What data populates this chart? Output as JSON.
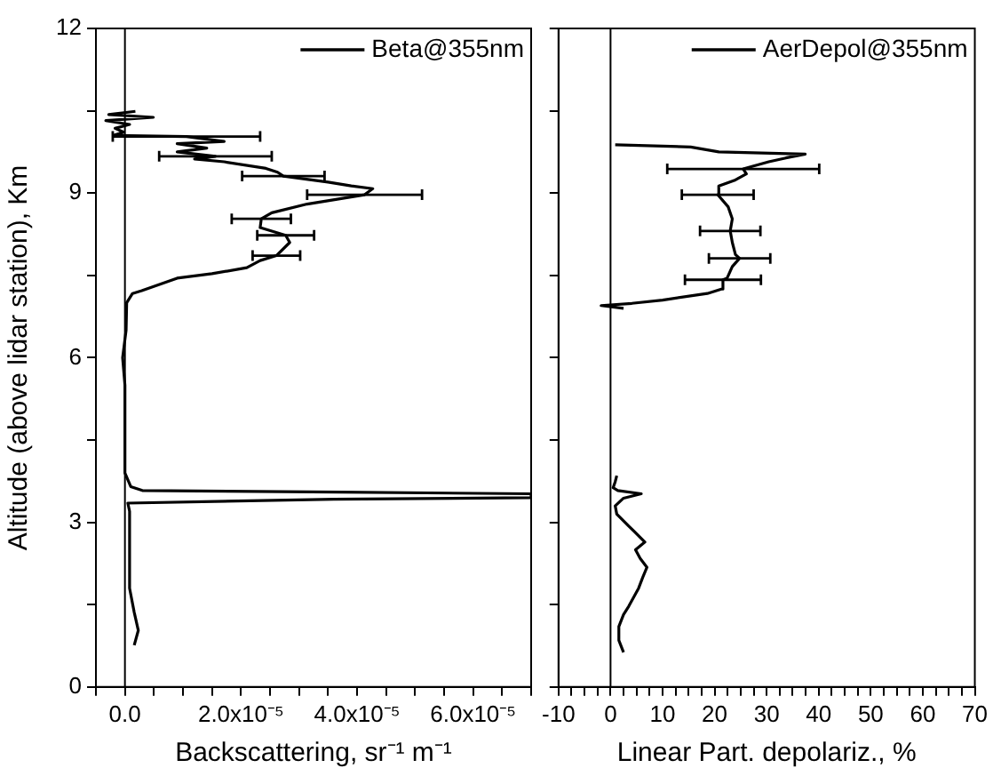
{
  "chart_data": [
    {
      "type": "line",
      "xlabel": "Backscattering, sr⁻¹ m⁻¹",
      "ylabel": "Altitude (above lidar station), Km",
      "legend": "top right",
      "xlim": [
        -5e-06,
        7e-05
      ],
      "ylim": [
        0,
        12
      ],
      "xticks": [
        {
          "value": -5e-06,
          "label": null
        },
        {
          "value": 0,
          "label": "0.0"
        },
        {
          "value": 5e-06,
          "label": null
        },
        {
          "value": 1e-05,
          "label": null
        },
        {
          "value": 1.5e-05,
          "label": null
        },
        {
          "value": 2e-05,
          "label": "2.0x10⁻⁵"
        },
        {
          "value": 2.5e-05,
          "label": null
        },
        {
          "value": 3e-05,
          "label": null
        },
        {
          "value": 3.5e-05,
          "label": null
        },
        {
          "value": 4e-05,
          "label": "4.0x10⁻⁵"
        },
        {
          "value": 4.5e-05,
          "label": null
        },
        {
          "value": 5e-05,
          "label": null
        },
        {
          "value": 5.5e-05,
          "label": null
        },
        {
          "value": 6e-05,
          "label": "6.0x10⁻⁵"
        },
        {
          "value": 6.5e-05,
          "label": null
        },
        {
          "value": 7e-05,
          "label": null
        }
      ],
      "yticks": [
        0,
        {
          "value": 1.5,
          "label": null
        },
        3,
        {
          "value": 4.5,
          "label": null
        },
        6,
        {
          "value": 7.5,
          "label": null
        },
        9,
        {
          "value": 10.5,
          "label": null
        },
        12
      ],
      "ref_lines": [
        {
          "axis": "x",
          "value": 0,
          "color": "#000000"
        }
      ],
      "series": [
        {
          "name": "Beta@355nm",
          "color": "#000000",
          "x": [
            1.6e-06,
            2.3e-06,
            1.6e-06,
            8e-07,
            8e-07,
            5e-07,
            3.6e-05,
            7e-05,
            7e-05,
            3.7e-05,
            3e-06,
            1e-06,
            0.0,
            0.0,
            -4e-07,
            2e-07,
            3e-07,
            1.3e-06,
            2.9e-06,
            9e-06,
            1.5e-05,
            2.1e-05,
            2.33e-05,
            2.61e-05,
            2.84e-05,
            2.77e-05,
            2.33e-05,
            2.35e-05,
            2.53e-05,
            3.14e-05,
            4.13e-05,
            4.27e-05,
            3.9e-05,
            3.5e-05,
            2.73e-05,
            2.63e-05,
            2.43e-05,
            1.71e-05,
            1.2e-05,
            1.56e-05,
            9e-06,
            1.41e-05,
            9e-06,
            1.71e-05,
            1.06e-05,
            -2e-06,
            -2e-07,
            -1.7e-06,
            8e-07,
            -3.3e-06,
            4.9e-06,
            -2.8e-06,
            1.8e-06
          ],
          "values": [
            0.76,
            1.03,
            1.36,
            1.8,
            3.2,
            3.35,
            3.42,
            3.45,
            3.52,
            3.55,
            3.58,
            3.65,
            3.9,
            5.5,
            6.0,
            6.5,
            7.0,
            7.17,
            7.22,
            7.45,
            7.53,
            7.64,
            7.77,
            7.86,
            8.1,
            8.23,
            8.37,
            8.53,
            8.64,
            8.8,
            8.97,
            9.08,
            9.13,
            9.2,
            9.31,
            9.38,
            9.45,
            9.57,
            9.62,
            9.67,
            9.75,
            9.82,
            9.9,
            9.94,
            10.03,
            10.05,
            10.11,
            10.18,
            10.25,
            10.32,
            10.38,
            10.43,
            10.49
          ],
          "xerrors": [
            null,
            null,
            null,
            null,
            null,
            null,
            null,
            null,
            null,
            null,
            null,
            null,
            null,
            null,
            null,
            null,
            null,
            null,
            null,
            null,
            null,
            null,
            null,
            4.1e-06,
            null,
            4.9e-06,
            null,
            5.1e-06,
            null,
            null,
            9.9e-06,
            null,
            null,
            null,
            7.1e-06,
            null,
            null,
            null,
            null,
            9.7e-06,
            null,
            null,
            null,
            null,
            1.27e-05,
            null,
            null,
            null,
            null,
            null,
            null,
            null,
            null
          ]
        }
      ]
    },
    {
      "type": "line",
      "xlabel": "Linear Part. depolariz., %",
      "legend": "top right",
      "tick_labels": "x",
      "xlim": [
        -10,
        70
      ],
      "ylim": [
        0,
        12
      ],
      "xticks": [
        -10,
        {
          "value": -7.5,
          "label": null
        },
        {
          "value": -5,
          "label": null
        },
        {
          "value": -2.5,
          "label": null
        },
        0,
        {
          "value": 2.5,
          "label": null
        },
        {
          "value": 5,
          "label": null
        },
        {
          "value": 7.5,
          "label": null
        },
        10,
        {
          "value": 12.5,
          "label": null
        },
        {
          "value": 15,
          "label": null
        },
        {
          "value": 17.5,
          "label": null
        },
        20,
        {
          "value": 22.5,
          "label": null
        },
        {
          "value": 25,
          "label": null
        },
        {
          "value": 27.5,
          "label": null
        },
        30,
        {
          "value": 32.5,
          "label": null
        },
        {
          "value": 35,
          "label": null
        },
        {
          "value": 37.5,
          "label": null
        },
        40,
        {
          "value": 42.5,
          "label": null
        },
        {
          "value": 45,
          "label": null
        },
        {
          "value": 47.5,
          "label": null
        },
        50,
        {
          "value": 52.5,
          "label": null
        },
        {
          "value": 55,
          "label": null
        },
        {
          "value": 57.5,
          "label": null
        },
        60,
        {
          "value": 62.5,
          "label": null
        },
        {
          "value": 65,
          "label": null
        },
        {
          "value": 67.5,
          "label": null
        },
        70
      ],
      "yticks": [
        {
          "value": 0,
          "label": null
        },
        {
          "value": 1.5,
          "label": null
        },
        {
          "value": 3,
          "label": null
        },
        {
          "value": 4.5,
          "label": null
        },
        {
          "value": 6,
          "label": null
        },
        {
          "value": 7.5,
          "label": null
        },
        {
          "value": 9,
          "label": null
        },
        {
          "value": 10.5,
          "label": null
        },
        {
          "value": 12,
          "label": null
        }
      ],
      "ref_lines": [
        {
          "axis": "x",
          "value": 0,
          "color": "#000000"
        }
      ],
      "series": [
        {
          "name": "AerDepol@355nm",
          "color": "#000000",
          "x": [
            2.5,
            1.6,
            1.6,
            2.5,
            3.5,
            5.4,
            6.2,
            7.0,
            5.7,
            4.8,
            6.6,
            4.6,
            3.5,
            1.2,
            0.9,
            2.5,
            5.9,
            1.4,
            0.5,
            0.9,
            1.2,
            null,
            2.5,
            -1.8,
            4.1,
            10,
            18.6,
            21.3,
            21.6,
            22.4,
            23.4,
            24.8,
            24,
            23.4,
            23.0,
            23.4,
            22.6,
            20.6,
            20.8,
            24,
            26.1,
            25.5,
            30.4,
            33.7,
            37.4,
            20.8,
            15.4,
            0.9
          ],
          "values": [
            0.63,
            0.85,
            1.1,
            1.32,
            1.47,
            1.8,
            2.0,
            2.18,
            2.34,
            2.5,
            2.64,
            2.83,
            2.93,
            3.15,
            3.3,
            3.44,
            3.52,
            3.58,
            3.63,
            3.74,
            3.85,
            null,
            6.9,
            6.95,
            6.99,
            7.05,
            7.17,
            7.25,
            7.42,
            7.45,
            7.66,
            7.81,
            7.88,
            8.1,
            8.31,
            8.53,
            8.75,
            8.97,
            9.13,
            9.24,
            9.35,
            9.44,
            9.57,
            9.64,
            9.71,
            9.75,
            9.84,
            9.88
          ],
          "xerrors": [
            null,
            null,
            null,
            null,
            null,
            null,
            null,
            null,
            null,
            null,
            null,
            null,
            null,
            null,
            null,
            null,
            null,
            null,
            null,
            null,
            null,
            null,
            null,
            null,
            null,
            null,
            null,
            null,
            7.3,
            null,
            null,
            5.9,
            null,
            null,
            5.8,
            null,
            null,
            6.9,
            null,
            null,
            null,
            14.6,
            null,
            null,
            null,
            null,
            null,
            null
          ]
        }
      ]
    }
  ]
}
